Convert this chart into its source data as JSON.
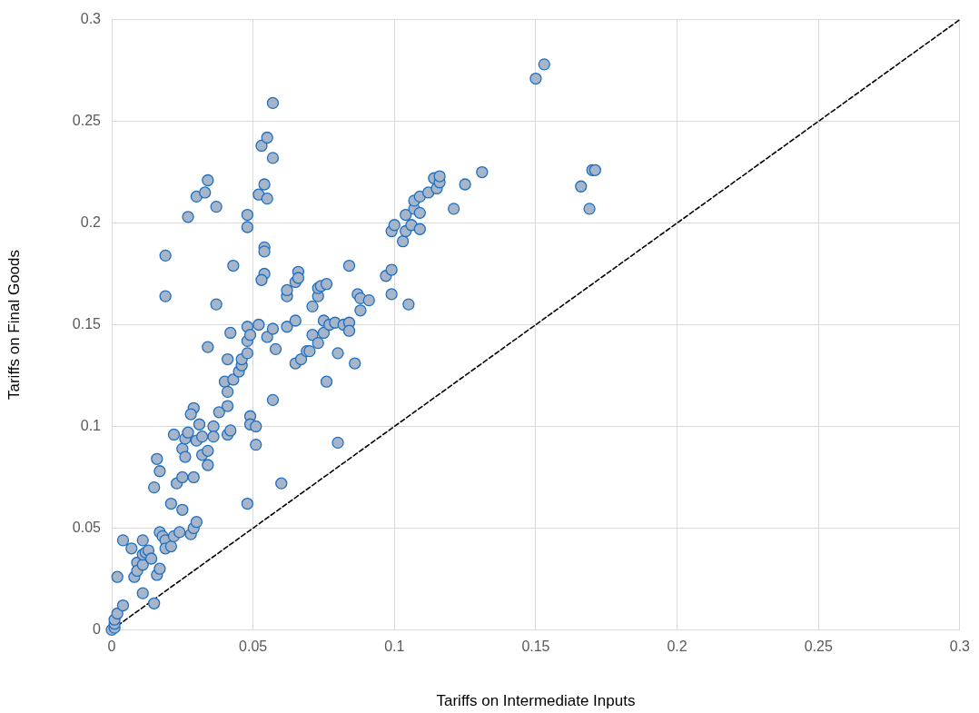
{
  "chart_data": {
    "type": "scatter",
    "xlabel": "Tariffs on Intermediate Inputs",
    "ylabel": "Tariffs on Final Goods",
    "xlim": [
      0,
      0.3
    ],
    "xticks": [
      0,
      0.05,
      0.1,
      0.15,
      0.2,
      0.25,
      0.3
    ],
    "ylim": [
      0,
      0.3
    ],
    "yticks": [
      0,
      0.05,
      0.1,
      0.15,
      0.2,
      0.25,
      0.3
    ],
    "grid": true,
    "legend": false,
    "marker": "circle",
    "series": [
      {
        "color": "#a6b5c9",
        "x": [
          0,
          0.001,
          0.001,
          0.001,
          0.002,
          0.004,
          0.002,
          0.004,
          0.007,
          0.009,
          0.008,
          0.009,
          0.011,
          0.011,
          0.011,
          0.011,
          0.012,
          0.013,
          0.014,
          0.015,
          0.016,
          0.015,
          0.017,
          0.018,
          0.019,
          0.017,
          0.017,
          0.016,
          0.019,
          0.021,
          0.022,
          0.021,
          0.022,
          0.023,
          0.025,
          0.025,
          0.026,
          0.027,
          0.028,
          0.029,
          0.029,
          0.029,
          0.03,
          0.031,
          0.032,
          0.03,
          0.025,
          0.024,
          0.026,
          0.028,
          0.032,
          0.034,
          0.034,
          0.036,
          0.036,
          0.038,
          0.04,
          0.041,
          0.041,
          0.041,
          0.042,
          0.041,
          0.042,
          0.043,
          0.045,
          0.046,
          0.046,
          0.048,
          0.048,
          0.048,
          0.049,
          0.049,
          0.049,
          0.051,
          0.051,
          0.048,
          0.043,
          0.019,
          0.019,
          0.027,
          0.03,
          0.033,
          0.034,
          0.037,
          0.037,
          0.034,
          0.048,
          0.048,
          0.052,
          0.054,
          0.053,
          0.055,
          0.057,
          0.057,
          0.055,
          0.054,
          0.054,
          0.054,
          0.053,
          0.052,
          0.055,
          0.057,
          0.058,
          0.057,
          0.06,
          0.062,
          0.062,
          0.062,
          0.065,
          0.066,
          0.066,
          0.065,
          0.065,
          0.067,
          0.069,
          0.07,
          0.071,
          0.071,
          0.073,
          0.073,
          0.074,
          0.076,
          0.073,
          0.075,
          0.075,
          0.076,
          0.077,
          0.079,
          0.08,
          0.08,
          0.082,
          0.084,
          0.084,
          0.084,
          0.086,
          0.087,
          0.088,
          0.088,
          0.091,
          0.097,
          0.099,
          0.099,
          0.099,
          0.1,
          0.103,
          0.104,
          0.104,
          0.105,
          0.106,
          0.107,
          0.107,
          0.109,
          0.109,
          0.109,
          0.112,
          0.114,
          0.115,
          0.116,
          0.116,
          0.121,
          0.125,
          0.131,
          0.15,
          0.153,
          0.166,
          0.169,
          0.17,
          0.171
        ],
        "values": [
          0,
          0.001,
          0.003,
          0.005,
          0.008,
          0.012,
          0.026,
          0.044,
          0.04,
          0.033,
          0.026,
          0.029,
          0.032,
          0.037,
          0.044,
          0.018,
          0.038,
          0.039,
          0.035,
          0.013,
          0.027,
          0.07,
          0.048,
          0.046,
          0.044,
          0.03,
          0.078,
          0.084,
          0.04,
          0.041,
          0.046,
          0.062,
          0.096,
          0.072,
          0.075,
          0.089,
          0.094,
          0.097,
          0.047,
          0.05,
          0.075,
          0.109,
          0.093,
          0.101,
          0.095,
          0.053,
          0.059,
          0.048,
          0.085,
          0.106,
          0.086,
          0.088,
          0.081,
          0.1,
          0.095,
          0.107,
          0.122,
          0.117,
          0.11,
          0.096,
          0.098,
          0.133,
          0.146,
          0.123,
          0.127,
          0.13,
          0.133,
          0.136,
          0.142,
          0.149,
          0.145,
          0.105,
          0.101,
          0.1,
          0.091,
          0.062,
          0.179,
          0.164,
          0.184,
          0.203,
          0.213,
          0.215,
          0.221,
          0.208,
          0.16,
          0.139,
          0.204,
          0.198,
          0.214,
          0.219,
          0.238,
          0.242,
          0.259,
          0.232,
          0.212,
          0.188,
          0.186,
          0.175,
          0.172,
          0.15,
          0.144,
          0.148,
          0.138,
          0.113,
          0.072,
          0.149,
          0.164,
          0.167,
          0.171,
          0.176,
          0.173,
          0.152,
          0.131,
          0.133,
          0.137,
          0.137,
          0.145,
          0.159,
          0.164,
          0.168,
          0.169,
          0.17,
          0.141,
          0.146,
          0.152,
          0.122,
          0.15,
          0.151,
          0.136,
          0.092,
          0.15,
          0.151,
          0.147,
          0.179,
          0.131,
          0.165,
          0.163,
          0.157,
          0.162,
          0.174,
          0.177,
          0.165,
          0.196,
          0.199,
          0.191,
          0.196,
          0.204,
          0.16,
          0.199,
          0.207,
          0.211,
          0.213,
          0.197,
          0.205,
          0.215,
          0.222,
          0.217,
          0.22,
          0.223,
          0.207,
          0.219,
          0.225,
          0.271,
          0.278,
          0.218,
          0.207,
          0.226,
          0.226
        ]
      },
      {
        "type": "line",
        "color": "#000000",
        "marker": "none",
        "line_style": "dashed",
        "x": [
          0,
          0.3
        ],
        "values": [
          0,
          0.3
        ]
      }
    ]
  }
}
